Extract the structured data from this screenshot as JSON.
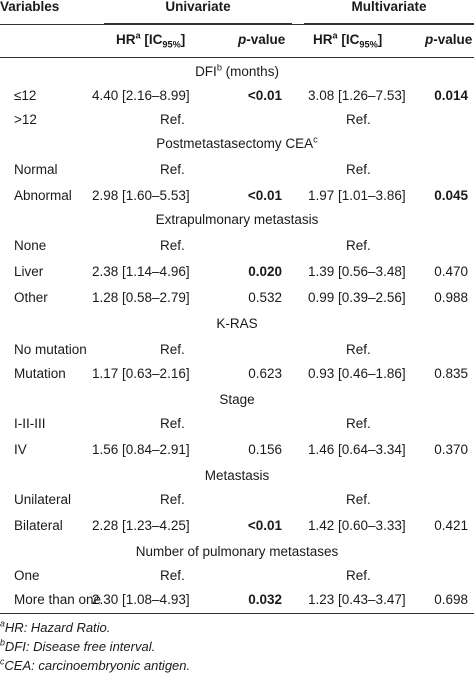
{
  "header": {
    "variables": "Variables",
    "univariate": "Univariate",
    "multivariate": "Multivariate",
    "hr_label": "HR",
    "hr_sup": "a",
    "ic_label": "[IC",
    "ic_sub": "95%",
    "ic_close": "]",
    "p_italic": "p",
    "p_rest": "-value"
  },
  "sections": [
    {
      "title": "DFI",
      "title_sup": "b",
      "title_suffix": " (months)"
    },
    {
      "title": "Postmetastasectomy CEA",
      "title_sup": "c",
      "title_suffix": ""
    },
    {
      "title": "Extrapulmonary metastasis",
      "title_sup": "",
      "title_suffix": ""
    },
    {
      "title": "K-RAS",
      "title_sup": "",
      "title_suffix": ""
    },
    {
      "title": "Stage",
      "title_sup": "",
      "title_suffix": ""
    },
    {
      "title": "Metastasis",
      "title_sup": "",
      "title_suffix": ""
    },
    {
      "title": "Number of pulmonary metastases",
      "title_sup": "",
      "title_suffix": ""
    }
  ],
  "rows": [
    {
      "var": "≤12",
      "hr1": "4.40 [2.16–8.99]",
      "p1": "<0.01",
      "hr2": "3.08 [1.26–7.53]",
      "p2": "0.014"
    },
    {
      "var": ">12",
      "ref1": "Ref.",
      "ref2": "Ref."
    },
    {
      "var": "Normal",
      "ref1": "Ref.",
      "ref2": "Ref."
    },
    {
      "var": "Abnormal",
      "hr1": "2.98 [1.60–5.53]",
      "p1": "<0.01",
      "hr2": "1.97 [1.01–3.86]",
      "p2": "0.045"
    },
    {
      "var": "None",
      "ref1": "Ref.",
      "ref2": "Ref."
    },
    {
      "var": "Liver",
      "hr1": "2.38 [1.14–4.96]",
      "p1": "0.020",
      "hr2": "1.39 [0.56–3.48]",
      "p2": "0.470"
    },
    {
      "var": "Other",
      "hr1": "1.28 [0.58–2.79]",
      "p1": "0.532",
      "hr2": "0.99 [0.39–2.56]",
      "p2": "0.988"
    },
    {
      "var": "No mutation",
      "ref1": "Ref.",
      "ref2": "Ref."
    },
    {
      "var": "Mutation",
      "hr1": "1.17 [0.63–2.16]",
      "p1": "0.623",
      "hr2": "0.93 [0.46–1.86]",
      "p2": "0.835"
    },
    {
      "var": "I-II-III",
      "ref1": "Ref.",
      "ref2": "Ref."
    },
    {
      "var": "IV",
      "hr1": "1.56 [0.84–2.91]",
      "p1": "0.156",
      "hr2": "1.46 [0.64–3.34]",
      "p2": "0.370"
    },
    {
      "var": "Unilateral",
      "ref1": "Ref.",
      "ref2": "Ref."
    },
    {
      "var": "Bilateral",
      "hr1": "2.28 [1.23–4.25]",
      "p1": "<0.01",
      "hr2": "1.42 [0.60–3.33]",
      "p2": "0.421"
    },
    {
      "var": "One",
      "ref1": "Ref.",
      "ref2": "Ref."
    },
    {
      "var": "More than one",
      "hr1": "2.30 [1.08–4.93]",
      "p1": "0.032",
      "hr2": "1.23 [0.43–3.47]",
      "p2": "0.698"
    }
  ],
  "footnotes": [
    {
      "sup": "a",
      "text": "HR: Hazard Ratio."
    },
    {
      "sup": "b",
      "text": "DFI: Disease free interval."
    },
    {
      "sup": "c",
      "text": "CEA: carcinoembryonic antigen."
    }
  ]
}
